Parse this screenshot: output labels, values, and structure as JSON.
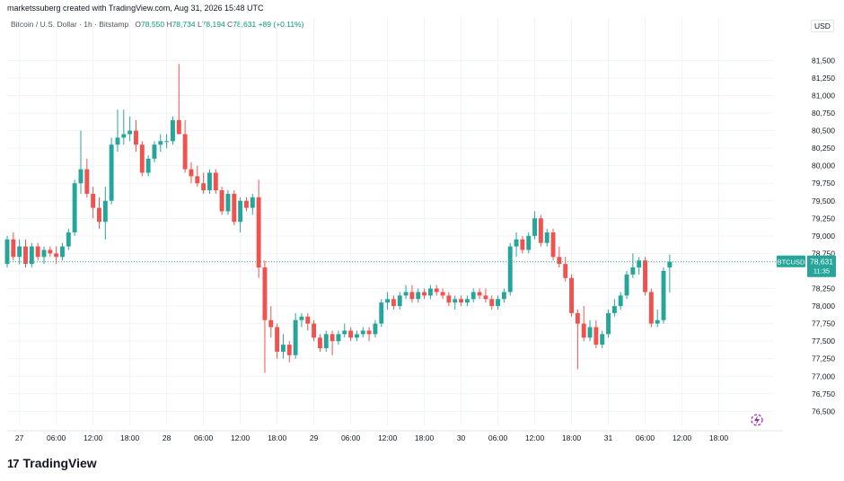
{
  "header": {
    "credit": "marketssuberg created with TradingView.com, Aug 31, 2026 15:48 UTC",
    "symbol": "Bitcoin / U.S. Dollar · 1h · Bitstamp",
    "open_label": "O",
    "open_value": "78,550",
    "high_label": "H",
    "high_value": "78,734",
    "low_label": "L",
    "low_value": "78,194",
    "close_label": "C",
    "close_value": "78,631",
    "change": "+89 (+0.11%)",
    "currency": "USD"
  },
  "price_tag": {
    "symbol": "BTCUSD",
    "price": "78,631",
    "countdown": "11:35"
  },
  "footer": {
    "logo_mark": "17",
    "logo_text": "TradingView"
  },
  "colors": {
    "up": "#26a69a",
    "down": "#ef5350",
    "grid": "#f0f3fa",
    "axis_text": "#131722"
  },
  "chart_data": {
    "type": "candlestick",
    "title": "",
    "ylim": [
      76300,
      81850
    ],
    "y_ticks": [
      76500,
      76750,
      77000,
      77250,
      77500,
      77750,
      78000,
      78250,
      78500,
      78750,
      79000,
      79250,
      79500,
      79750,
      80000,
      80250,
      80500,
      80750,
      81000,
      81250,
      81500
    ],
    "x_ticks": [
      "27",
      "06:00",
      "12:00",
      "18:00",
      "28",
      "06:00",
      "12:00",
      "18:00",
      "29",
      "06:00",
      "12:00",
      "18:00",
      "30",
      "06:00",
      "12:00",
      "18:00",
      "31",
      "06:00",
      "12:00",
      "18:00"
    ],
    "x_tick_hours": [
      0,
      6,
      12,
      18,
      24,
      30,
      36,
      42,
      48,
      54,
      60,
      66,
      72,
      78,
      84,
      90,
      96,
      102,
      108,
      114
    ],
    "last_price": 78631,
    "candles_ohlc": [
      [
        78600,
        79000,
        78550,
        78950
      ],
      [
        78950,
        79050,
        78650,
        78700
      ],
      [
        78700,
        78950,
        78600,
        78850
      ],
      [
        78850,
        78950,
        78550,
        78600
      ],
      [
        78600,
        78900,
        78550,
        78850
      ],
      [
        78850,
        78900,
        78650,
        78700
      ],
      [
        78700,
        78850,
        78600,
        78800
      ],
      [
        78800,
        78850,
        78700,
        78750
      ],
      [
        78750,
        78850,
        78600,
        78700
      ],
      [
        78700,
        78900,
        78650,
        78850
      ],
      [
        78850,
        79100,
        78800,
        79050
      ],
      [
        79050,
        79800,
        79000,
        79750
      ],
      [
        79750,
        80500,
        79600,
        79950
      ],
      [
        79950,
        80100,
        79550,
        79600
      ],
      [
        79600,
        79700,
        79250,
        79400
      ],
      [
        79400,
        79550,
        79100,
        79200
      ],
      [
        79200,
        79700,
        78950,
        79500
      ],
      [
        79500,
        80400,
        79450,
        80300
      ],
      [
        80300,
        80800,
        80200,
        80400
      ],
      [
        80400,
        80800,
        80300,
        80450
      ],
      [
        80450,
        80700,
        80350,
        80500
      ],
      [
        80500,
        80650,
        80200,
        80300
      ],
      [
        80300,
        80350,
        79850,
        79900
      ],
      [
        79900,
        80150,
        79850,
        80100
      ],
      [
        80100,
        80350,
        80050,
        80300
      ],
      [
        80300,
        80450,
        80200,
        80350
      ],
      [
        80350,
        80450,
        80250,
        80350
      ],
      [
        80350,
        80700,
        80300,
        80650
      ],
      [
        80650,
        81450,
        80550,
        80450
      ],
      [
        80450,
        80650,
        79900,
        79950
      ],
      [
        79950,
        80050,
        79750,
        79850
      ],
      [
        79850,
        80000,
        79700,
        79750
      ],
      [
        79750,
        79900,
        79600,
        79650
      ],
      [
        79650,
        79950,
        79600,
        79900
      ],
      [
        79900,
        79950,
        79600,
        79650
      ],
      [
        79650,
        79700,
        79300,
        79350
      ],
      [
        79350,
        79650,
        79300,
        79600
      ],
      [
        79600,
        79650,
        79150,
        79200
      ],
      [
        79200,
        79550,
        79050,
        79500
      ],
      [
        79500,
        79550,
        79350,
        79400
      ],
      [
        79400,
        79600,
        79300,
        79550
      ],
      [
        79550,
        79800,
        78400,
        78550
      ],
      [
        78550,
        78650,
        77050,
        77800
      ],
      [
        77800,
        78000,
        77550,
        77700
      ],
      [
        77700,
        77750,
        77250,
        77350
      ],
      [
        77350,
        77600,
        77250,
        77450
      ],
      [
        77450,
        77500,
        77200,
        77300
      ],
      [
        77300,
        77900,
        77250,
        77800
      ],
      [
        77800,
        77900,
        77700,
        77850
      ],
      [
        77850,
        77900,
        77650,
        77750
      ],
      [
        77750,
        77800,
        77500,
        77550
      ],
      [
        77550,
        77600,
        77350,
        77400
      ],
      [
        77400,
        77650,
        77350,
        77600
      ],
      [
        77600,
        77650,
        77300,
        77500
      ],
      [
        77500,
        77650,
        77450,
        77600
      ],
      [
        77600,
        77750,
        77550,
        77650
      ],
      [
        77650,
        77700,
        77500,
        77550
      ],
      [
        77550,
        77650,
        77500,
        77600
      ],
      [
        77600,
        77700,
        77550,
        77650
      ],
      [
        77650,
        77700,
        77500,
        77600
      ],
      [
        77600,
        77800,
        77550,
        77750
      ],
      [
        77750,
        78100,
        77700,
        78050
      ],
      [
        78050,
        78200,
        77950,
        78100
      ],
      [
        78100,
        78150,
        77950,
        78000
      ],
      [
        78000,
        78200,
        77950,
        78150
      ],
      [
        78150,
        78300,
        78100,
        78200
      ],
      [
        78200,
        78300,
        78050,
        78100
      ],
      [
        78100,
        78250,
        78050,
        78200
      ],
      [
        78200,
        78250,
        78100,
        78150
      ],
      [
        78150,
        78300,
        78100,
        78250
      ],
      [
        78250,
        78300,
        78150,
        78200
      ],
      [
        78200,
        78250,
        78100,
        78150
      ],
      [
        78150,
        78200,
        78000,
        78050
      ],
      [
        78050,
        78150,
        77950,
        78100
      ],
      [
        78100,
        78150,
        78000,
        78050
      ],
      [
        78050,
        78150,
        78000,
        78100
      ],
      [
        78100,
        78250,
        78050,
        78200
      ],
      [
        78200,
        78250,
        78100,
        78150
      ],
      [
        78150,
        78250,
        78050,
        78100
      ],
      [
        78100,
        78150,
        77950,
        78000
      ],
      [
        78000,
        78150,
        77950,
        78100
      ],
      [
        78100,
        78250,
        78050,
        78200
      ],
      [
        78200,
        78900,
        78150,
        78850
      ],
      [
        78850,
        79050,
        78700,
        78950
      ],
      [
        78950,
        79000,
        78750,
        78800
      ],
      [
        78800,
        79050,
        78750,
        79000
      ],
      [
        79000,
        79350,
        78950,
        79250
      ],
      [
        79250,
        79300,
        78850,
        78900
      ],
      [
        78900,
        79100,
        78850,
        79050
      ],
      [
        79050,
        79100,
        78650,
        78700
      ],
      [
        78700,
        78850,
        78550,
        78600
      ],
      [
        78600,
        78700,
        78350,
        78400
      ],
      [
        78400,
        78450,
        77850,
        77900
      ],
      [
        77900,
        77950,
        77100,
        77750
      ],
      [
        77750,
        78000,
        77500,
        77550
      ],
      [
        77550,
        77800,
        77500,
        77700
      ],
      [
        77700,
        77800,
        77400,
        77450
      ],
      [
        77450,
        77650,
        77400,
        77600
      ],
      [
        77600,
        77950,
        77550,
        77900
      ],
      [
        77900,
        78100,
        77850,
        78000
      ],
      [
        78000,
        78200,
        77950,
        78150
      ],
      [
        78150,
        78500,
        78100,
        78450
      ],
      [
        78450,
        78750,
        78400,
        78550
      ],
      [
        78550,
        78700,
        78450,
        78650
      ],
      [
        78650,
        78700,
        78150,
        78200
      ],
      [
        78200,
        78250,
        77700,
        77750
      ],
      [
        77750,
        77950,
        77700,
        77800
      ],
      [
        77800,
        78550,
        77750,
        78500
      ],
      [
        78550,
        78734,
        78194,
        78631
      ]
    ]
  }
}
